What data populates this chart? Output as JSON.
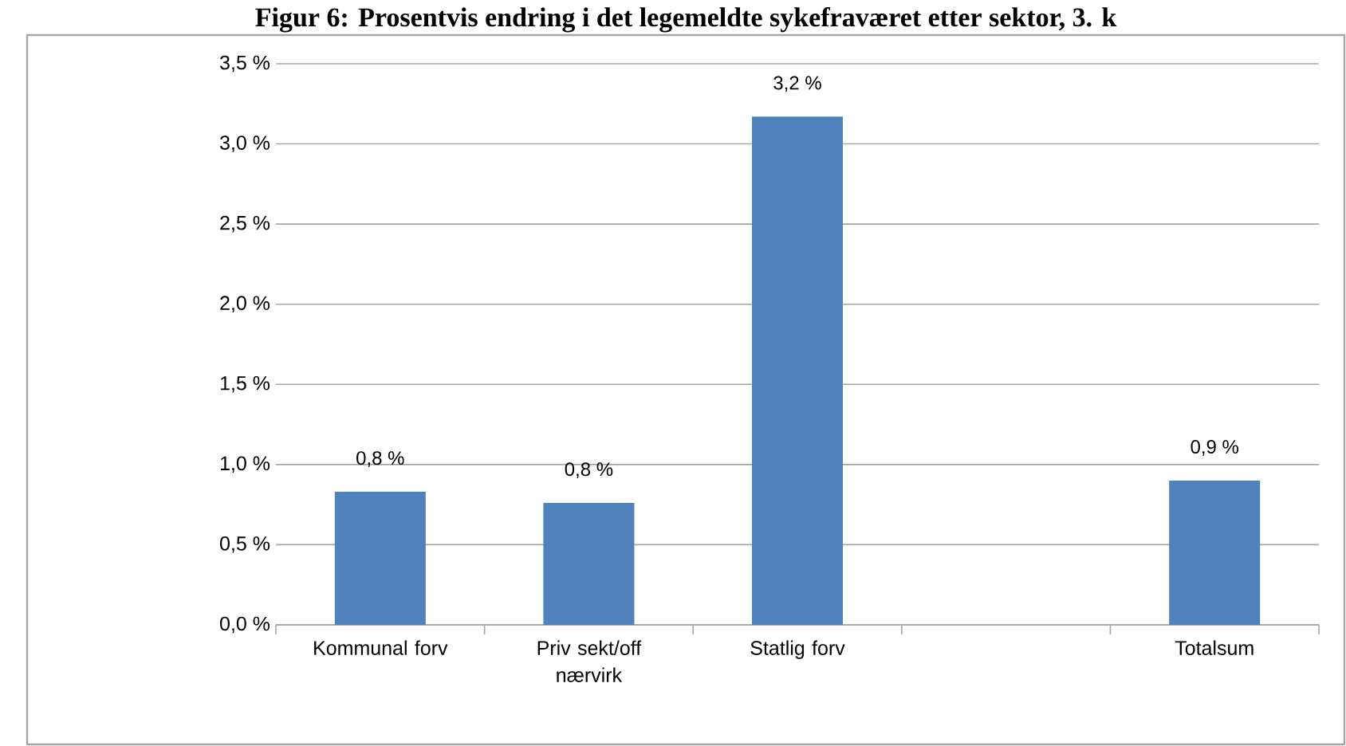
{
  "chart_data": {
    "type": "bar",
    "title": "Figur 6: Prosentvis endring i det legemeldte sykefraværet etter sektor, 3. k",
    "categories": [
      "Kommunal forv",
      "Priv sekt/off nærvirk",
      "Statlig forv",
      null,
      "Totalsum"
    ],
    "values": [
      0.83,
      0.76,
      3.17,
      null,
      0.9
    ],
    "value_labels": [
      "0,8 %",
      "0,8 %",
      "3,2 %",
      null,
      "0,9 %"
    ],
    "color": "#4f81bd",
    "ylim": [
      0,
      3.5
    ],
    "yticks": [
      {
        "value": 0,
        "label": "0,0 %"
      },
      {
        "value": 0.5,
        "label": "0,5 %"
      },
      {
        "value": 1,
        "label": "1,0 %"
      },
      {
        "value": 1.5,
        "label": "1,5 %"
      },
      {
        "value": 2,
        "label": "2,0 %"
      },
      {
        "value": 2.5,
        "label": "2,5 %"
      },
      {
        "value": 3,
        "label": "3,0 %"
      },
      {
        "value": 3.5,
        "label": "3,5 %"
      }
    ],
    "grid": "y"
  }
}
